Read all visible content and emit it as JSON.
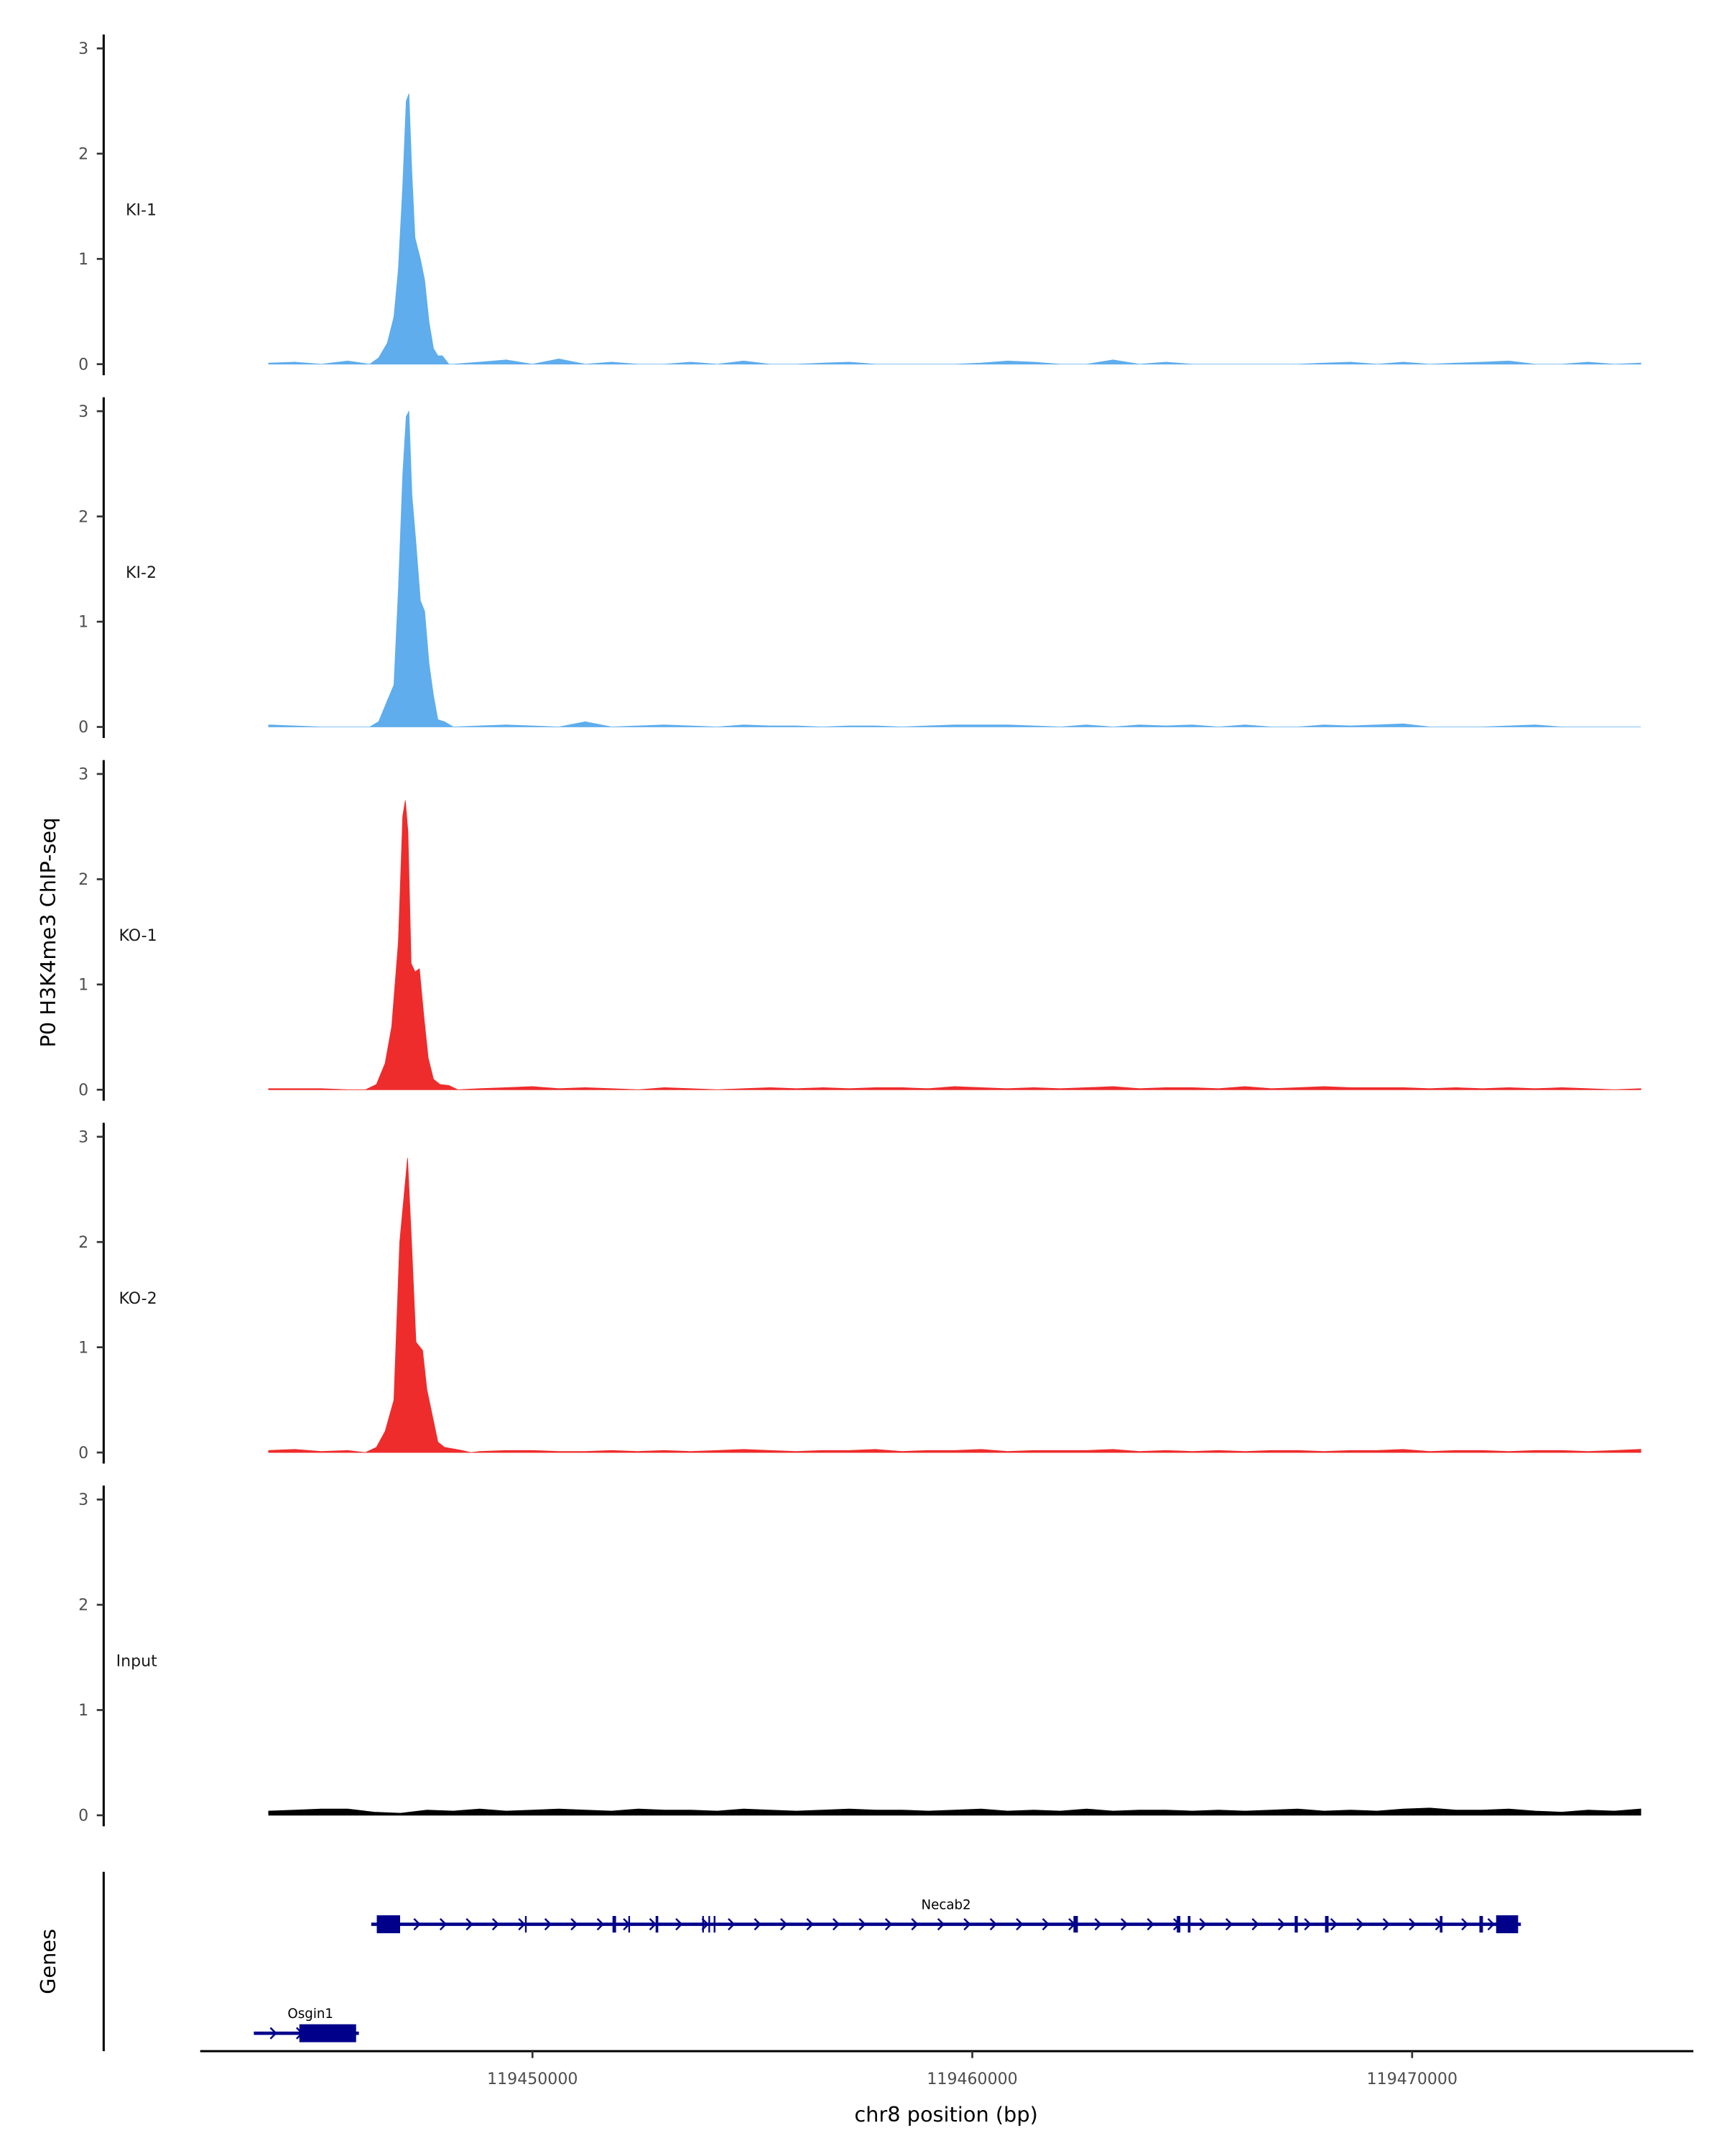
{
  "chart_data": {
    "type": "area",
    "ylabel": "P0 H3K4me3 ChIP-seq",
    "xlabel": "chr8 position (bp)",
    "xlim": [
      119442200,
      119476100
    ],
    "xticks": [
      119450000,
      119460000,
      119470000
    ],
    "xtick_labels": [
      "119450000",
      "119460000",
      "119470000"
    ],
    "ylim": [
      0,
      3.1
    ],
    "yticks": [
      0,
      1,
      2,
      3
    ],
    "ytick_labels": [
      "0",
      "1",
      "2",
      "3"
    ],
    "grid": false,
    "tracks": [
      {
        "name": "KI-1",
        "color": "#5FADEC",
        "background": {
          "start": 119444000,
          "step": 600,
          "values": [
            0.01,
            0.02,
            0,
            0.03,
            0,
            0,
            0,
            0,
            0.02,
            0.04,
            0,
            0.05,
            0,
            0.02,
            0,
            0,
            0.02,
            0,
            0.03,
            0,
            0,
            0.01,
            0.02,
            0,
            0,
            0,
            0,
            0.01,
            0.03,
            0.02,
            0,
            0,
            0.04,
            0,
            0.02,
            0,
            0,
            0,
            0,
            0,
            0.01,
            0.02,
            0,
            0.02,
            0,
            0.01,
            0.02,
            0.03,
            0,
            0,
            0.02,
            0,
            0.01
          ]
        },
        "peak": [
          [
            119446300,
            0
          ],
          [
            119446500,
            0.06
          ],
          [
            119446700,
            0.2
          ],
          [
            119446850,
            0.45
          ],
          [
            119446950,
            0.9
          ],
          [
            119447050,
            1.7
          ],
          [
            119447130,
            2.5
          ],
          [
            119447190,
            2.57
          ],
          [
            119447260,
            1.8
          ],
          [
            119447330,
            1.2
          ],
          [
            119447450,
            1.0
          ],
          [
            119447550,
            0.8
          ],
          [
            119447650,
            0.4
          ],
          [
            119447750,
            0.15
          ],
          [
            119447850,
            0.08
          ],
          [
            119447950,
            0.08
          ],
          [
            119448100,
            0
          ]
        ]
      },
      {
        "name": "KI-2",
        "color": "#5FADEC",
        "background": {
          "start": 119444000,
          "step": 600,
          "values": [
            0.02,
            0.01,
            0,
            0,
            0,
            0,
            0,
            0.01,
            0.01,
            0.02,
            0.01,
            0,
            0.05,
            0,
            0.01,
            0.02,
            0.01,
            0,
            0.02,
            0.01,
            0.01,
            0,
            0.01,
            0.01,
            0,
            0.01,
            0.02,
            0.02,
            0.02,
            0.01,
            0,
            0.02,
            0,
            0.02,
            0.01,
            0.02,
            0,
            0.02,
            0,
            0,
            0.02,
            0.01,
            0.02,
            0.03,
            0,
            0,
            0,
            0.01,
            0.02,
            0,
            0,
            0,
            0
          ]
        },
        "peak": [
          [
            119446300,
            0
          ],
          [
            119446500,
            0.05
          ],
          [
            119446700,
            0.25
          ],
          [
            119446850,
            0.4
          ],
          [
            119446950,
            1.3
          ],
          [
            119447050,
            2.4
          ],
          [
            119447130,
            2.95
          ],
          [
            119447190,
            3.0
          ],
          [
            119447260,
            2.2
          ],
          [
            119447350,
            1.75
          ],
          [
            119447450,
            1.2
          ],
          [
            119447550,
            1.1
          ],
          [
            119447650,
            0.6
          ],
          [
            119447750,
            0.3
          ],
          [
            119447850,
            0.07
          ],
          [
            119448000,
            0.05
          ],
          [
            119448200,
            0
          ]
        ]
      },
      {
        "name": "KO-1",
        "color": "#EE2C2C",
        "background": {
          "start": 119444000,
          "step": 600,
          "values": [
            0.01,
            0.01,
            0.01,
            0,
            0,
            0,
            0,
            0.03,
            0.01,
            0.02,
            0.03,
            0.01,
            0.02,
            0.01,
            0,
            0.02,
            0.01,
            0,
            0.01,
            0.02,
            0.01,
            0.02,
            0.01,
            0.02,
            0.02,
            0.01,
            0.03,
            0.02,
            0.01,
            0.02,
            0.01,
            0.02,
            0.03,
            0.01,
            0.02,
            0.02,
            0.01,
            0.03,
            0.01,
            0.02,
            0.03,
            0.02,
            0.02,
            0.02,
            0.01,
            0.02,
            0.01,
            0.02,
            0.01,
            0.02,
            0.01,
            0,
            0.01
          ]
        },
        "peak": [
          [
            119446200,
            0
          ],
          [
            119446450,
            0.05
          ],
          [
            119446650,
            0.25
          ],
          [
            119446800,
            0.6
          ],
          [
            119446950,
            1.4
          ],
          [
            119447050,
            2.6
          ],
          [
            119447110,
            2.75
          ],
          [
            119447170,
            2.45
          ],
          [
            119447240,
            1.2
          ],
          [
            119447330,
            1.12
          ],
          [
            119447430,
            1.15
          ],
          [
            119447530,
            0.7
          ],
          [
            119447630,
            0.3
          ],
          [
            119447750,
            0.1
          ],
          [
            119447900,
            0.05
          ],
          [
            119448100,
            0.04
          ],
          [
            119448300,
            0
          ]
        ]
      },
      {
        "name": "KO-2",
        "color": "#EE2C2C",
        "background": {
          "start": 119444000,
          "step": 600,
          "values": [
            0.02,
            0.03,
            0.01,
            0.02,
            0.01,
            0,
            0,
            0,
            0.01,
            0.02,
            0.02,
            0.01,
            0.01,
            0.02,
            0.01,
            0.02,
            0.01,
            0.02,
            0.03,
            0.02,
            0.01,
            0.02,
            0.02,
            0.03,
            0.01,
            0.02,
            0.02,
            0.03,
            0.01,
            0.02,
            0.02,
            0.02,
            0.03,
            0.01,
            0.02,
            0.01,
            0.02,
            0.01,
            0.02,
            0.02,
            0.01,
            0.02,
            0.02,
            0.03,
            0.01,
            0.02,
            0.02,
            0.01,
            0.02,
            0.02,
            0.01,
            0.02,
            0.03
          ]
        },
        "peak": [
          [
            119446200,
            0
          ],
          [
            119446450,
            0.05
          ],
          [
            119446650,
            0.2
          ],
          [
            119446850,
            0.5
          ],
          [
            119446980,
            2.0
          ],
          [
            119447160,
            2.8
          ],
          [
            119447250,
            2.0
          ],
          [
            119447350,
            1.05
          ],
          [
            119447500,
            0.97
          ],
          [
            119447600,
            0.6
          ],
          [
            119447700,
            0.4
          ],
          [
            119447850,
            0.1
          ],
          [
            119448000,
            0.05
          ],
          [
            119448400,
            0.02
          ],
          [
            119448600,
            0
          ]
        ]
      },
      {
        "name": "Input",
        "color": "#000000",
        "background": {
          "start": 119444000,
          "step": 600,
          "values": [
            0.04,
            0.05,
            0.06,
            0.06,
            0.03,
            0.02,
            0.05,
            0.04,
            0.06,
            0.04,
            0.05,
            0.06,
            0.05,
            0.04,
            0.06,
            0.05,
            0.05,
            0.04,
            0.06,
            0.05,
            0.04,
            0.05,
            0.06,
            0.05,
            0.05,
            0.04,
            0.05,
            0.06,
            0.04,
            0.05,
            0.04,
            0.06,
            0.04,
            0.05,
            0.05,
            0.04,
            0.05,
            0.04,
            0.05,
            0.06,
            0.04,
            0.05,
            0.04,
            0.06,
            0.07,
            0.05,
            0.05,
            0.06,
            0.04,
            0.03,
            0.05,
            0.04,
            0.06
          ]
        },
        "peak": []
      }
    ],
    "genes_panel": {
      "label": "Genes",
      "color": "#00008B",
      "genes": [
        {
          "name": "Necab2",
          "strand": "+",
          "start": 119446460,
          "end": 119472410,
          "exons": [
            [
              119446460,
              119446990
            ],
            [
              119449830,
              119449860
            ],
            [
              119451820,
              119451900
            ],
            [
              119452180,
              119452210
            ],
            [
              119452800,
              119452860
            ],
            [
              119453860,
              119453890
            ],
            [
              119454000,
              119454030
            ],
            [
              119454120,
              119454160
            ],
            [
              119462300,
              119462400
            ],
            [
              119464650,
              119464730
            ],
            [
              119464900,
              119464960
            ],
            [
              119467330,
              119467400
            ],
            [
              119468020,
              119468100
            ],
            [
              119470630,
              119470690
            ],
            [
              119471530,
              119471610
            ],
            [
              119471910,
              119472410
            ]
          ]
        },
        {
          "name": "Osgin1",
          "strand": "+",
          "start": 119443790,
          "end": 119445990,
          "exons": [
            [
              119444700,
              119445990
            ]
          ]
        }
      ]
    }
  }
}
